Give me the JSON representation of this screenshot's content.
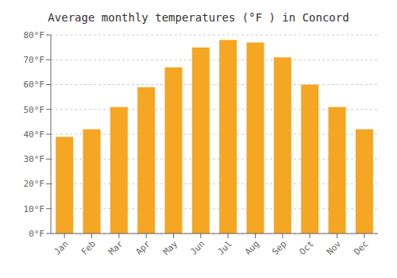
{
  "chart_data": {
    "type": "bar",
    "title": "Average monthly temperatures (°F ) in Concord",
    "categories": [
      "Jan",
      "Feb",
      "Mar",
      "Apr",
      "May",
      "Jun",
      "Jul",
      "Aug",
      "Sep",
      "Oct",
      "Nov",
      "Dec"
    ],
    "values": [
      39,
      42,
      51,
      59,
      67,
      75,
      78,
      77,
      71,
      60,
      51,
      42
    ],
    "color": "#F5A623",
    "ylim": [
      0,
      80
    ],
    "yticks": [
      {
        "value": 0,
        "label": "0°F"
      },
      {
        "value": 10,
        "label": "10°F"
      },
      {
        "value": 20,
        "label": "20°F"
      },
      {
        "value": 30,
        "label": "30°F"
      },
      {
        "value": 40,
        "label": "40°F"
      },
      {
        "value": 50,
        "label": "50°F"
      },
      {
        "value": 60,
        "label": "60°F"
      },
      {
        "value": 70,
        "label": "70°F"
      },
      {
        "value": 80,
        "label": "80°F"
      }
    ],
    "grid": true
  }
}
